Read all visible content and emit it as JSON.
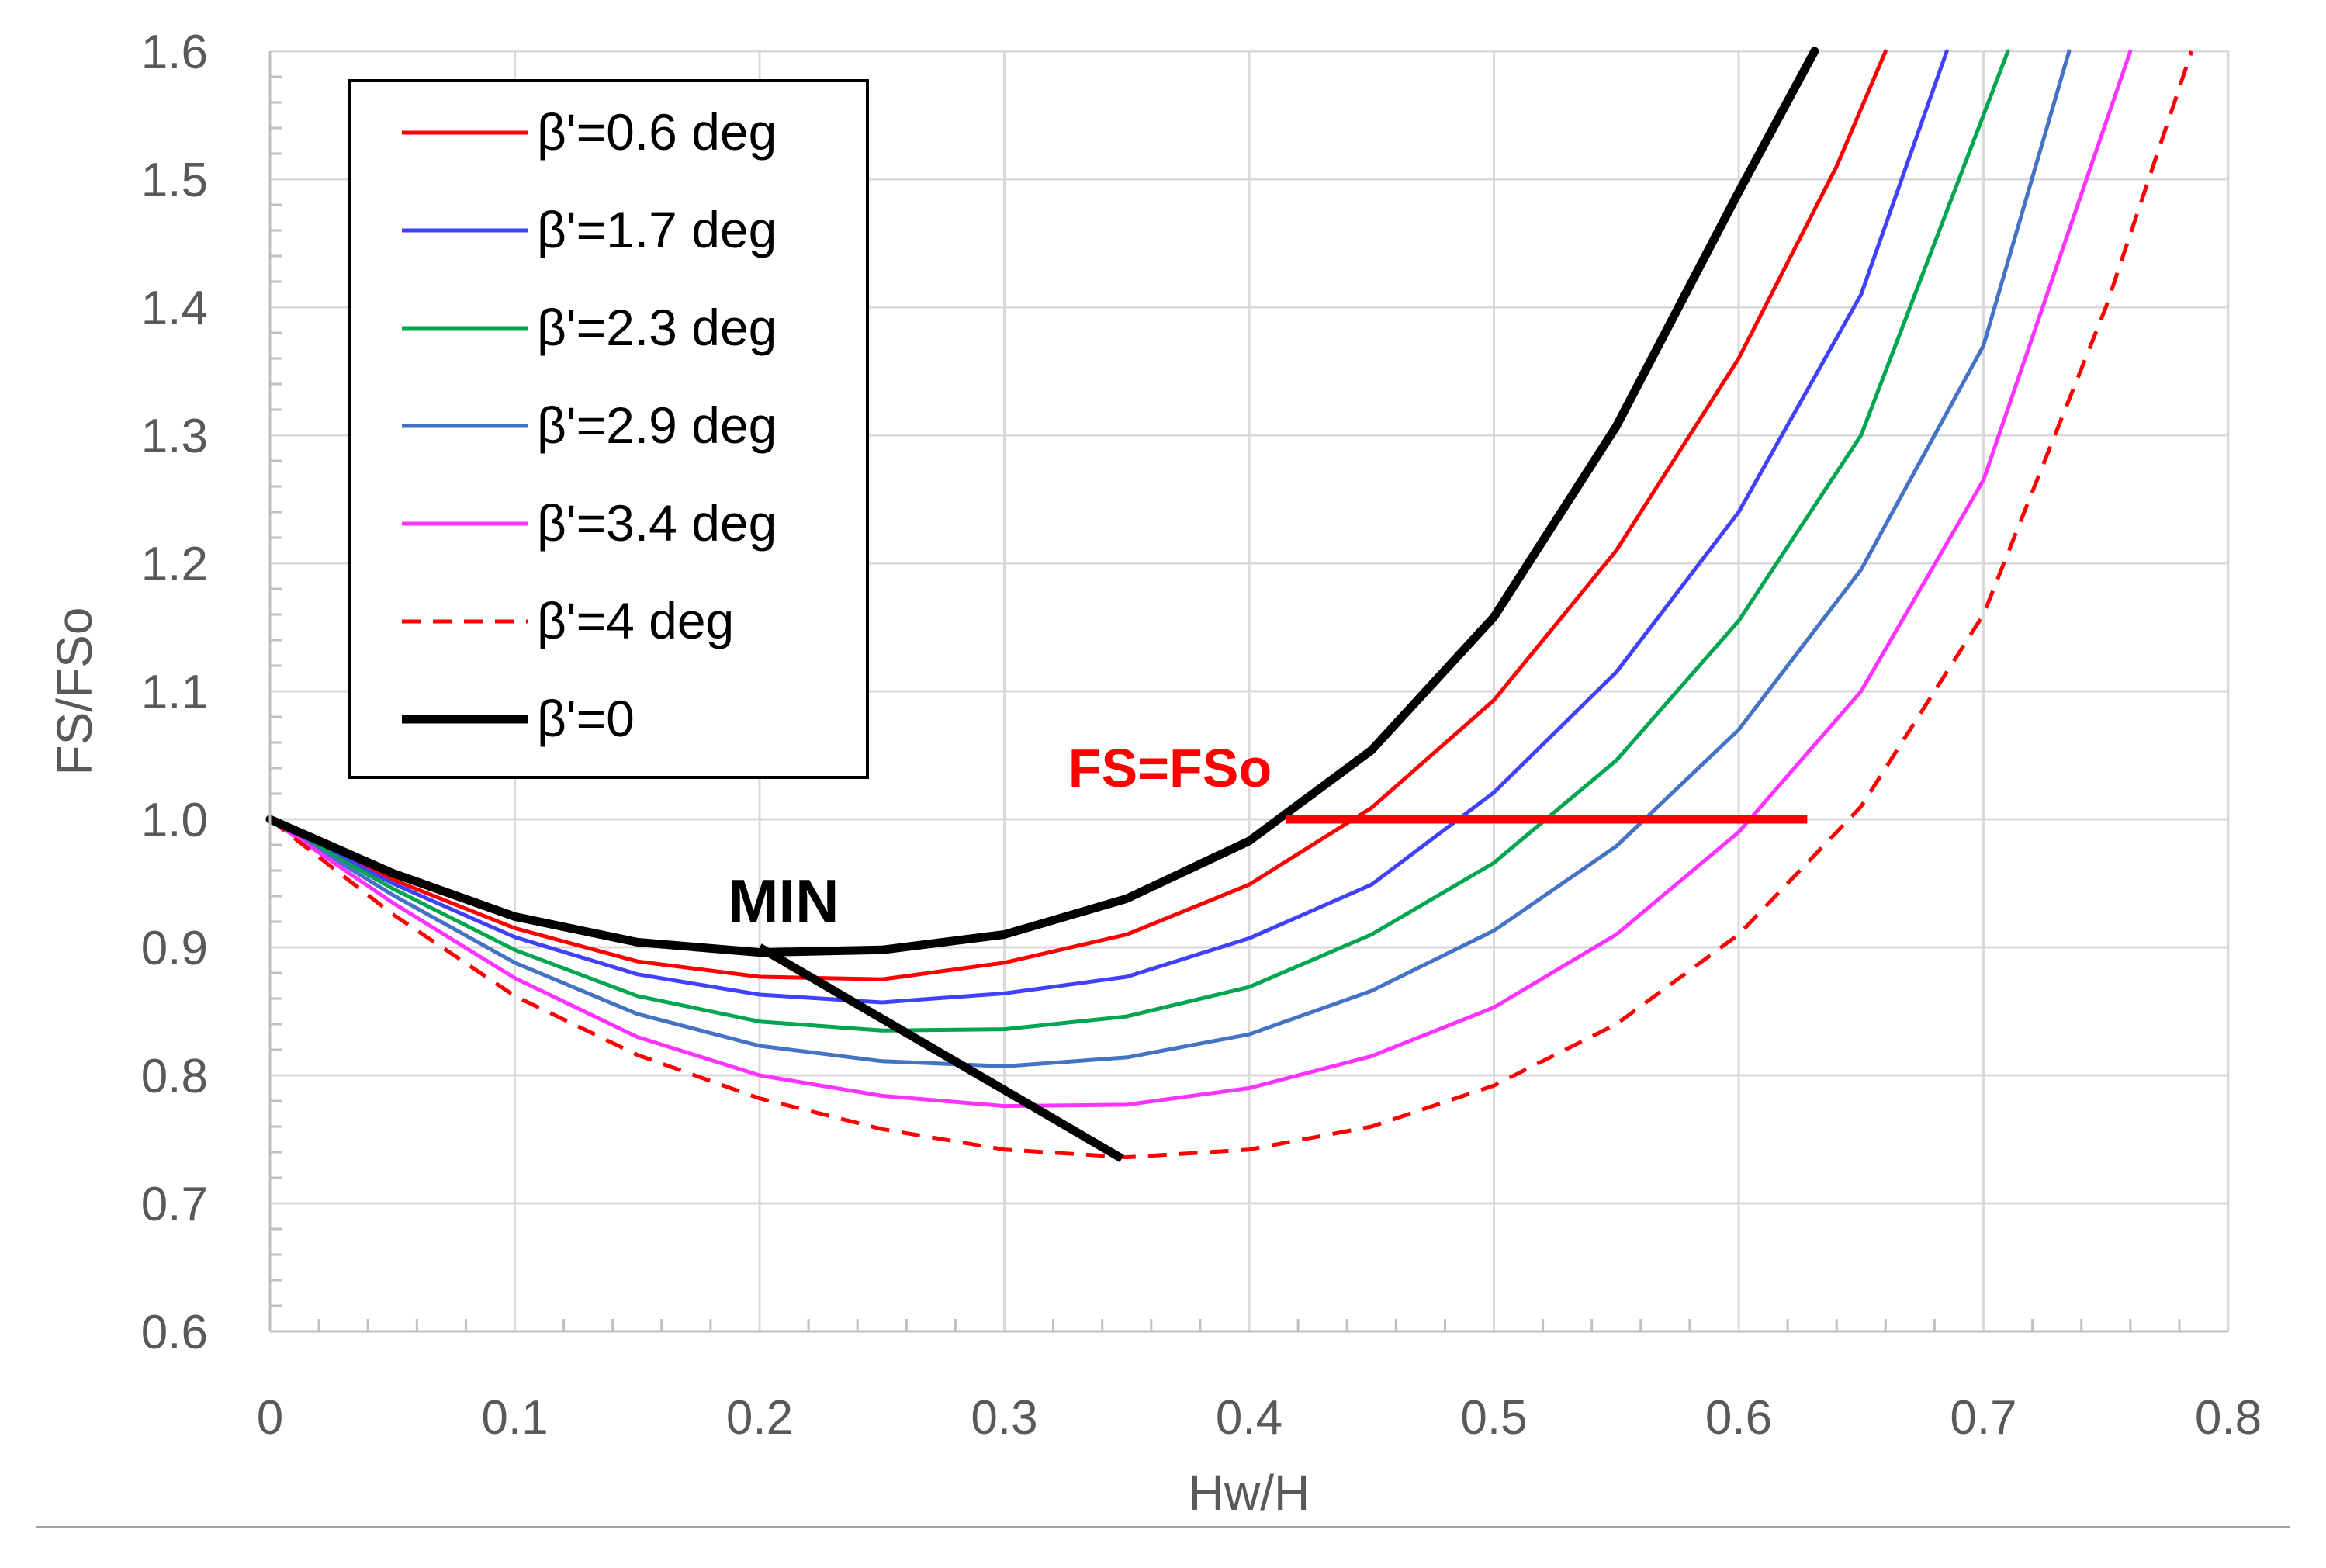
{
  "chart_data": {
    "type": "line",
    "title": "",
    "xlabel": "Hw/H",
    "ylabel": "FS/FSo",
    "xlim": [
      0,
      0.8
    ],
    "ylim": [
      0.6,
      1.6
    ],
    "xticks": [
      0,
      0.1,
      0.2,
      0.3,
      0.4,
      0.5,
      0.6,
      0.7,
      0.8
    ],
    "xtick_labels": [
      "0",
      "0.1",
      "0.2",
      "0.3",
      "0.4",
      "0.5",
      "0.6",
      "0.7",
      "0.8"
    ],
    "yticks": [
      0.6,
      0.7,
      0.8,
      0.9,
      1.0,
      1.1,
      1.2,
      1.3,
      1.4,
      1.5,
      1.6
    ],
    "ytick_labels": [
      "0.6",
      "0.7",
      "0.8",
      "0.9",
      "1.0",
      "1.1",
      "1.2",
      "1.3",
      "1.4",
      "1.5",
      "1.6"
    ],
    "grid": true,
    "legend_position": "top-left",
    "series": [
      {
        "name": "β'=0.6 deg",
        "color": "#ff0000",
        "style": "solid",
        "width": "normal",
        "x": [
          0,
          0.05,
          0.1,
          0.15,
          0.2,
          0.25,
          0.3,
          0.35,
          0.4,
          0.45,
          0.5,
          0.55,
          0.6,
          0.64,
          0.66
        ],
        "y": [
          1.0,
          0.953,
          0.915,
          0.889,
          0.877,
          0.875,
          0.888,
          0.91,
          0.949,
          1.009,
          1.093,
          1.21,
          1.36,
          1.51,
          1.6
        ]
      },
      {
        "name": "β'=1.7 deg",
        "color": "#4040ff",
        "style": "solid",
        "width": "normal",
        "x": [
          0,
          0.05,
          0.1,
          0.15,
          0.2,
          0.25,
          0.3,
          0.35,
          0.4,
          0.45,
          0.5,
          0.55,
          0.6,
          0.65,
          0.685
        ],
        "y": [
          1.0,
          0.95,
          0.908,
          0.879,
          0.863,
          0.857,
          0.864,
          0.877,
          0.907,
          0.949,
          1.021,
          1.115,
          1.24,
          1.41,
          1.6
        ]
      },
      {
        "name": "β'=2.3 deg",
        "color": "#00a550",
        "style": "solid",
        "width": "normal",
        "x": [
          0,
          0.05,
          0.1,
          0.15,
          0.2,
          0.25,
          0.3,
          0.35,
          0.4,
          0.45,
          0.5,
          0.55,
          0.6,
          0.65,
          0.71
        ],
        "y": [
          1.0,
          0.946,
          0.898,
          0.862,
          0.842,
          0.835,
          0.836,
          0.846,
          0.869,
          0.91,
          0.966,
          1.046,
          1.155,
          1.3,
          1.6
        ]
      },
      {
        "name": "β'=2.9 deg",
        "color": "#4472c4",
        "style": "solid",
        "width": "normal",
        "x": [
          0,
          0.05,
          0.1,
          0.15,
          0.2,
          0.25,
          0.3,
          0.35,
          0.4,
          0.45,
          0.5,
          0.55,
          0.6,
          0.65,
          0.7,
          0.735
        ],
        "y": [
          1.0,
          0.941,
          0.888,
          0.848,
          0.823,
          0.811,
          0.807,
          0.814,
          0.832,
          0.866,
          0.913,
          0.979,
          1.07,
          1.195,
          1.37,
          1.6
        ]
      },
      {
        "name": "β'=3.4 deg",
        "color": "#ff33ff",
        "style": "solid",
        "width": "normal",
        "x": [
          0,
          0.05,
          0.1,
          0.15,
          0.2,
          0.25,
          0.3,
          0.35,
          0.4,
          0.45,
          0.5,
          0.55,
          0.6,
          0.65,
          0.7,
          0.76
        ],
        "y": [
          1.0,
          0.935,
          0.876,
          0.83,
          0.8,
          0.784,
          0.776,
          0.777,
          0.79,
          0.815,
          0.853,
          0.91,
          0.99,
          1.1,
          1.265,
          1.6
        ]
      },
      {
        "name": "β'=4 deg",
        "color": "#ff0000",
        "style": "dashed",
        "width": "normal",
        "x": [
          0,
          0.05,
          0.1,
          0.15,
          0.2,
          0.25,
          0.3,
          0.35,
          0.4,
          0.45,
          0.5,
          0.55,
          0.6,
          0.65,
          0.7,
          0.75,
          0.785
        ],
        "y": [
          1.0,
          0.926,
          0.862,
          0.816,
          0.782,
          0.758,
          0.742,
          0.736,
          0.742,
          0.76,
          0.792,
          0.84,
          0.91,
          1.01,
          1.16,
          1.4,
          1.6
        ]
      },
      {
        "name": "β'=0",
        "color": "#000000",
        "style": "solid",
        "width": "bold",
        "x": [
          0,
          0.05,
          0.1,
          0.15,
          0.2,
          0.25,
          0.3,
          0.35,
          0.4,
          0.45,
          0.5,
          0.55,
          0.6,
          0.631
        ],
        "y": [
          1.0,
          0.958,
          0.924,
          0.904,
          0.896,
          0.898,
          0.91,
          0.938,
          0.983,
          1.054,
          1.158,
          1.307,
          1.49,
          1.6
        ]
      }
    ],
    "annotations": [
      {
        "kind": "line",
        "label": "MIN",
        "color": "#000000",
        "x": [
          0.2,
          0.348
        ],
        "y": [
          0.9,
          0.735
        ]
      },
      {
        "kind": "line",
        "label": "FS=FSo",
        "color": "#ff0000",
        "x": [
          0.415,
          0.628
        ],
        "y": [
          1.0,
          1.0
        ]
      }
    ]
  }
}
